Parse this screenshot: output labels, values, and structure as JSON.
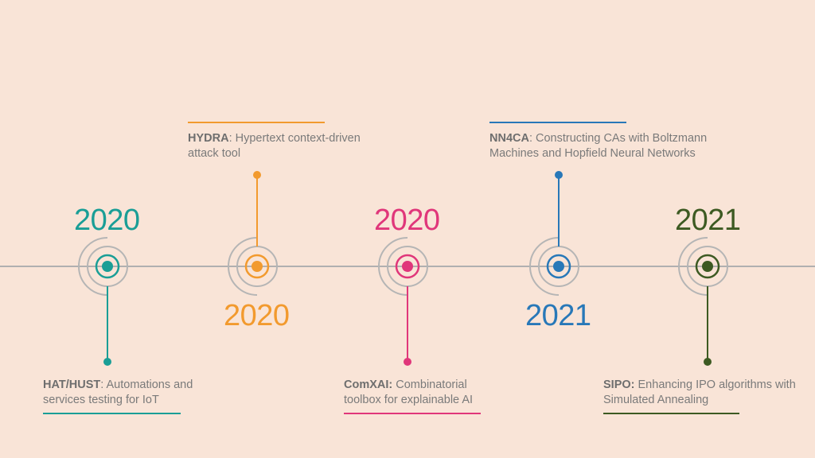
{
  "milestones": [
    {
      "year": "2020",
      "acronym": "HAT/HUST",
      "description": ": Automations and services testing for IoT",
      "color": "#1a9e96",
      "position": "below"
    },
    {
      "year": "2020",
      "acronym": "HYDRA",
      "description": ": Hypertext context-driven attack tool",
      "color": "#f29a2e",
      "position": "above"
    },
    {
      "year": "2020",
      "acronym": "ComXAI:",
      "description": " Combinatorial toolbox for explainable  AI",
      "color": "#e0367a",
      "position": "below"
    },
    {
      "year": "2021",
      "acronym": "NN4CA",
      "description": ": Constructing CAs with Boltzmann Machines and Hopfield Neural Networks",
      "color": "#2878b8",
      "position": "above"
    },
    {
      "year": "2021",
      "acronym": "SIPO:",
      "description": " Enhancing IPO algorithms with Simulated  Annealing",
      "color": "#3d5a22",
      "position": "below"
    }
  ],
  "colors": {
    "background": "#f9e4d7",
    "axis": "#b0b0b0",
    "text": "#7a7a7a"
  }
}
